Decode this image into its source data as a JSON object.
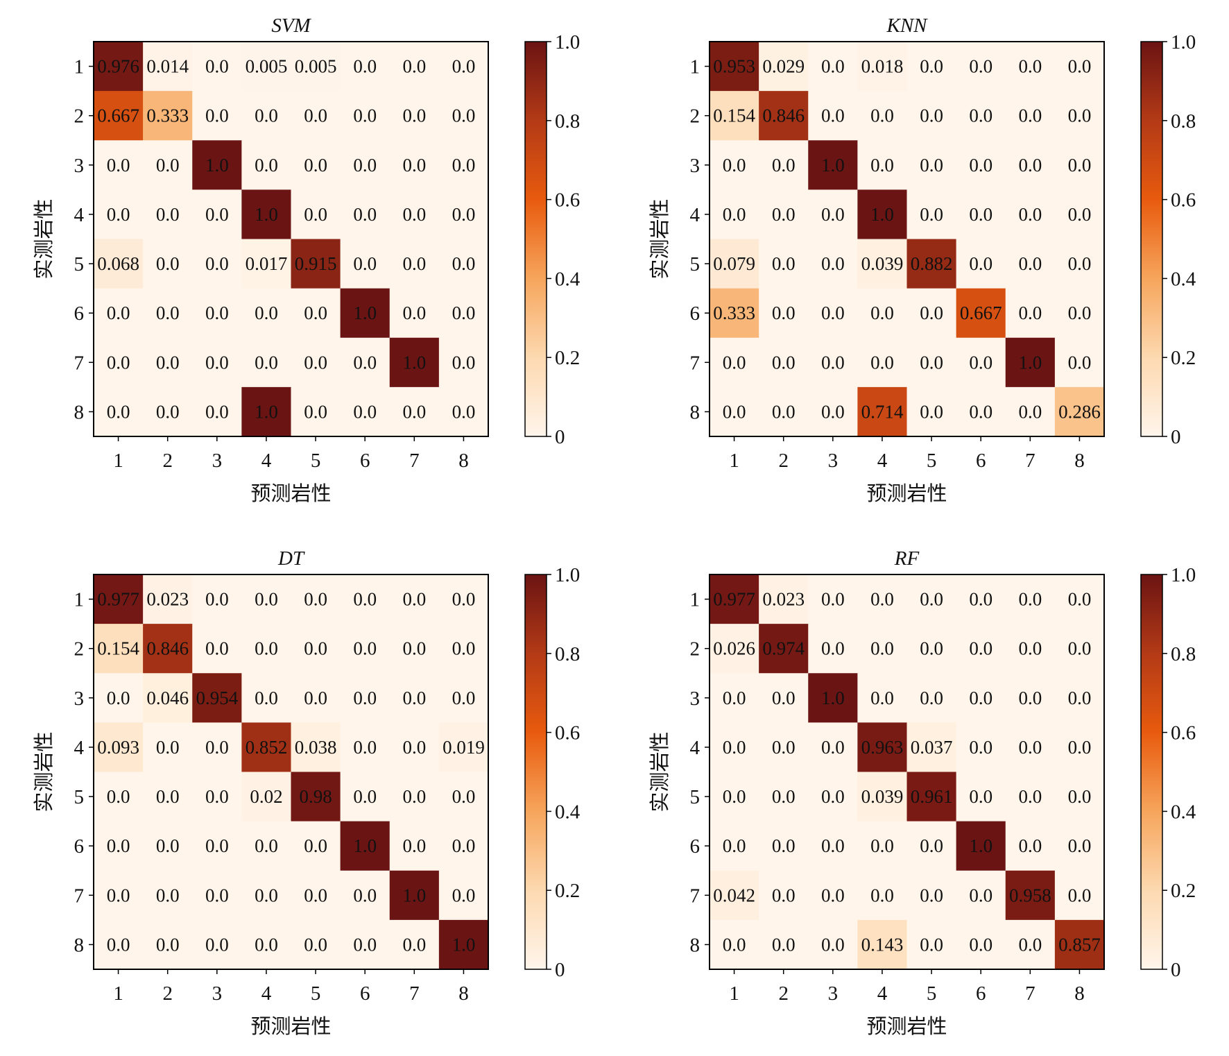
{
  "chart_data": [
    {
      "type": "heatmap",
      "title": "SVM",
      "xlabel": "预测岩性",
      "ylabel": "实测岩性",
      "categories": [
        "1",
        "2",
        "3",
        "4",
        "5",
        "6",
        "7",
        "8"
      ],
      "values": [
        [
          0.976,
          0.014,
          0.0,
          0.005,
          0.005,
          0.0,
          0.0,
          0.0
        ],
        [
          0.667,
          0.333,
          0.0,
          0.0,
          0.0,
          0.0,
          0.0,
          0.0
        ],
        [
          0.0,
          0.0,
          1.0,
          0.0,
          0.0,
          0.0,
          0.0,
          0.0
        ],
        [
          0.0,
          0.0,
          0.0,
          1.0,
          0.0,
          0.0,
          0.0,
          0.0
        ],
        [
          0.068,
          0.0,
          0.0,
          0.017,
          0.915,
          0.0,
          0.0,
          0.0
        ],
        [
          0.0,
          0.0,
          0.0,
          0.0,
          0.0,
          1.0,
          0.0,
          0.0
        ],
        [
          0.0,
          0.0,
          0.0,
          0.0,
          0.0,
          0.0,
          1.0,
          0.0
        ],
        [
          0.0,
          0.0,
          0.0,
          1.0,
          0.0,
          0.0,
          0.0,
          0.0
        ]
      ],
      "colorbar_ticks": [
        "0",
        "0.2",
        "0.4",
        "0.6",
        "0.8",
        "1.0"
      ],
      "vlim": [
        0,
        1
      ]
    },
    {
      "type": "heatmap",
      "title": "KNN",
      "xlabel": "预测岩性",
      "ylabel": "实测岩性",
      "categories": [
        "1",
        "2",
        "3",
        "4",
        "5",
        "6",
        "7",
        "8"
      ],
      "values": [
        [
          0.953,
          0.029,
          0.0,
          0.018,
          0.0,
          0.0,
          0.0,
          0.0
        ],
        [
          0.154,
          0.846,
          0.0,
          0.0,
          0.0,
          0.0,
          0.0,
          0.0
        ],
        [
          0.0,
          0.0,
          1.0,
          0.0,
          0.0,
          0.0,
          0.0,
          0.0
        ],
        [
          0.0,
          0.0,
          0.0,
          1.0,
          0.0,
          0.0,
          0.0,
          0.0
        ],
        [
          0.079,
          0.0,
          0.0,
          0.039,
          0.882,
          0.0,
          0.0,
          0.0
        ],
        [
          0.333,
          0.0,
          0.0,
          0.0,
          0.0,
          0.667,
          0.0,
          0.0
        ],
        [
          0.0,
          0.0,
          0.0,
          0.0,
          0.0,
          0.0,
          1.0,
          0.0
        ],
        [
          0.0,
          0.0,
          0.0,
          0.714,
          0.0,
          0.0,
          0.0,
          0.286
        ]
      ],
      "colorbar_ticks": [
        "0",
        "0.2",
        "0.4",
        "0.6",
        "0.8",
        "1.0"
      ],
      "vlim": [
        0,
        1
      ]
    },
    {
      "type": "heatmap",
      "title": "DT",
      "xlabel": "预测岩性",
      "ylabel": "实测岩性",
      "categories": [
        "1",
        "2",
        "3",
        "4",
        "5",
        "6",
        "7",
        "8"
      ],
      "values": [
        [
          0.977,
          0.023,
          0.0,
          0.0,
          0.0,
          0.0,
          0.0,
          0.0
        ],
        [
          0.154,
          0.846,
          0.0,
          0.0,
          0.0,
          0.0,
          0.0,
          0.0
        ],
        [
          0.0,
          0.046,
          0.954,
          0.0,
          0.0,
          0.0,
          0.0,
          0.0
        ],
        [
          0.093,
          0.0,
          0.0,
          0.852,
          0.038,
          0.0,
          0.0,
          0.019
        ],
        [
          0.0,
          0.0,
          0.0,
          0.02,
          0.98,
          0.0,
          0.0,
          0.0
        ],
        [
          0.0,
          0.0,
          0.0,
          0.0,
          0.0,
          1.0,
          0.0,
          0.0
        ],
        [
          0.0,
          0.0,
          0.0,
          0.0,
          0.0,
          0.0,
          1.0,
          0.0
        ],
        [
          0.0,
          0.0,
          0.0,
          0.0,
          0.0,
          0.0,
          0.0,
          1.0
        ]
      ],
      "colorbar_ticks": [
        "0",
        "0.2",
        "0.4",
        "0.6",
        "0.8",
        "1.0"
      ],
      "vlim": [
        0,
        1
      ]
    },
    {
      "type": "heatmap",
      "title": "RF",
      "xlabel": "预测岩性",
      "ylabel": "实测岩性",
      "categories": [
        "1",
        "2",
        "3",
        "4",
        "5",
        "6",
        "7",
        "8"
      ],
      "values": [
        [
          0.977,
          0.023,
          0.0,
          0.0,
          0.0,
          0.0,
          0.0,
          0.0
        ],
        [
          0.026,
          0.974,
          0.0,
          0.0,
          0.0,
          0.0,
          0.0,
          0.0
        ],
        [
          0.0,
          0.0,
          1.0,
          0.0,
          0.0,
          0.0,
          0.0,
          0.0
        ],
        [
          0.0,
          0.0,
          0.0,
          0.963,
          0.037,
          0.0,
          0.0,
          0.0
        ],
        [
          0.0,
          0.0,
          0.0,
          0.039,
          0.961,
          0.0,
          0.0,
          0.0
        ],
        [
          0.0,
          0.0,
          0.0,
          0.0,
          0.0,
          1.0,
          0.0,
          0.0
        ],
        [
          0.042,
          0.0,
          0.0,
          0.0,
          0.0,
          0.0,
          0.958,
          0.0
        ],
        [
          0.0,
          0.0,
          0.0,
          0.143,
          0.0,
          0.0,
          0.0,
          0.857
        ]
      ],
      "colorbar_ticks": [
        "0",
        "0.2",
        "0.4",
        "0.6",
        "0.8",
        "1.0"
      ],
      "vlim": [
        0,
        1
      ]
    }
  ],
  "colormap": {
    "name": "Oranges-to-darkred",
    "stops": [
      "#fff5eb",
      "#fdd9b0",
      "#f6a55c",
      "#e85b0e",
      "#b33a16",
      "#6b1414"
    ]
  }
}
